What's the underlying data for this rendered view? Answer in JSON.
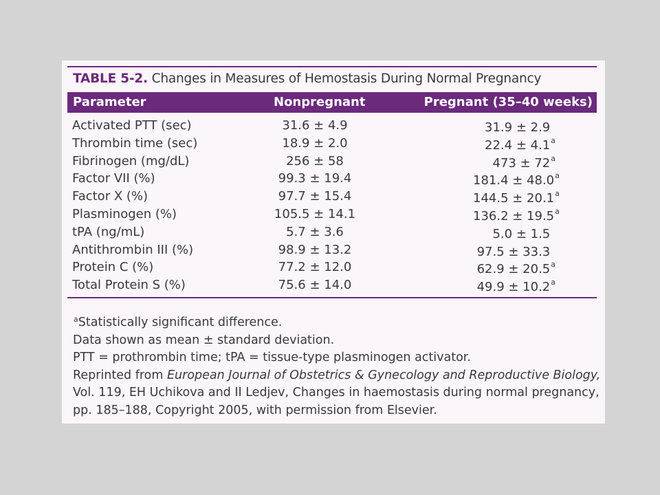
{
  "table": {
    "label": "TABLE 5-2.",
    "title": "Changes in Measures of Hemostasis During Normal Pregnancy",
    "headers": [
      "Parameter",
      "Nonpregnant",
      "Pregnant (35–40 weeks)"
    ],
    "rows": [
      {
        "parameter": "Activated PTT (sec)",
        "nonpregnant": "31.6 ± 4.9",
        "pregnant": "31.9 ± 2.9",
        "mark": ""
      },
      {
        "parameter": "Thrombin time (sec)",
        "nonpregnant": "18.9 ± 2.0",
        "pregnant": "22.4 ± 4.1",
        "mark": "a"
      },
      {
        "parameter": "Fibrinogen (mg/dL)",
        "nonpregnant": "256 ± 58",
        "pregnant": "473 ± 72",
        "mark": "a"
      },
      {
        "parameter": "Factor VII (%)",
        "nonpregnant": "99.3 ± 19.4",
        "pregnant": "181.4 ± 48.0",
        "mark": "a"
      },
      {
        "parameter": "Factor X (%)",
        "nonpregnant": "97.7 ± 15.4",
        "pregnant": "144.5 ± 20.1",
        "mark": "a"
      },
      {
        "parameter": "Plasminogen (%)",
        "nonpregnant": "105.5 ± 14.1",
        "pregnant": "136.2 ± 19.5",
        "mark": "a"
      },
      {
        "parameter": "tPA (ng/mL)",
        "nonpregnant": "5.7 ± 3.6",
        "pregnant": "5.0 ± 1.5",
        "mark": ""
      },
      {
        "parameter": "Antithrombin III (%)",
        "nonpregnant": "98.9 ± 13.2",
        "pregnant": "97.5 ± 33.3",
        "mark": ""
      },
      {
        "parameter": "Protein C (%)",
        "nonpregnant": "77.2 ± 12.0",
        "pregnant": "62.9 ± 20.5",
        "mark": "a"
      },
      {
        "parameter": "Total Protein S (%)",
        "nonpregnant": "75.6 ± 14.0",
        "pregnant": "49.9 ± 10.2",
        "mark": "a"
      }
    ]
  },
  "footnotes": {
    "sig_mark": "a",
    "sig_text": "Statistically significant difference.",
    "line2": "Data shown as mean ± standard deviation.",
    "line3": "PTT = prothrombin time; tPA = tissue-type plasminogen activator.",
    "reprint_prefix": "Reprinted from ",
    "journal": "European Journal of Obstetrics & Gynecology and Reproductive Biology,",
    "line5": "Vol. 119, EH Uchikova and II Ledjev, Changes in haemostasis during normal pregnancy,",
    "line6": "pp. 185–188, Copyright 2005, with permission from Elsevier."
  },
  "colors": {
    "accent": "#6b2a7c",
    "page_bg": "#d4d4d4",
    "card_bg": "#fbf6f9",
    "text": "#3a3a3a"
  }
}
